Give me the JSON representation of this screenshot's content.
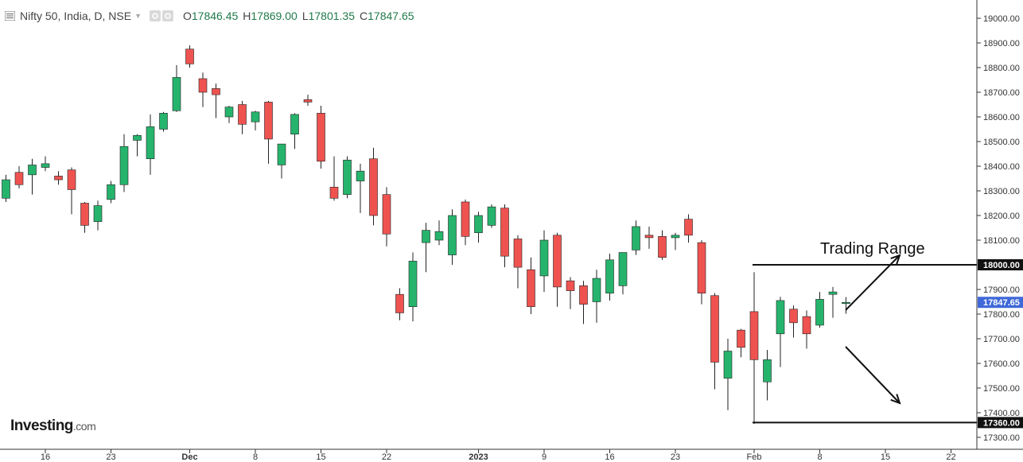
{
  "header": {
    "symbol": "Nifty 50, India, D, NSE",
    "open_label": "O",
    "open": "17846.45",
    "high_label": "H",
    "high": "17869.00",
    "low_label": "L",
    "low": "17801.35",
    "close_label": "C",
    "close": "17847.65"
  },
  "logo": {
    "brand": "Investing",
    "suffix": ".com"
  },
  "colors": {
    "up": "#26b46d",
    "down": "#ef5350",
    "current": "#3f68d8",
    "axis": "#333333",
    "line": "#111111"
  },
  "chart_data": {
    "type": "candlestick",
    "title": "",
    "ylim": [
      17300,
      19050
    ],
    "y_ticks": [
      "17300.00",
      "17400.00",
      "17500.00",
      "17600.00",
      "17700.00",
      "17800.00",
      "17900.00",
      "18100.00",
      "18200.00",
      "18300.00",
      "18400.00",
      "18500.00",
      "18600.00",
      "18700.00",
      "18800.00",
      "18900.00",
      "19000.00"
    ],
    "x_ticks": [
      {
        "label": "16",
        "index": 3
      },
      {
        "label": "23",
        "index": 8
      },
      {
        "label": "Dec",
        "index": 14
      },
      {
        "label": "8",
        "index": 19
      },
      {
        "label": "15",
        "index": 24
      },
      {
        "label": "22",
        "index": 29
      },
      {
        "label": "2023",
        "index": 36
      },
      {
        "label": "9",
        "index": 41
      },
      {
        "label": "16",
        "index": 46
      },
      {
        "label": "23",
        "index": 51
      },
      {
        "label": "Feb",
        "index": 57
      },
      {
        "label": "8",
        "index": 62
      },
      {
        "label": "15",
        "index": 67
      },
      {
        "label": "22",
        "index": 72
      }
    ],
    "candles": [
      {
        "o": 18270,
        "h": 18365,
        "l": 18255,
        "c": 18345
      },
      {
        "o": 18375,
        "h": 18400,
        "l": 18310,
        "c": 18325
      },
      {
        "o": 18365,
        "h": 18430,
        "l": 18285,
        "c": 18405
      },
      {
        "o": 18395,
        "h": 18440,
        "l": 18380,
        "c": 18410
      },
      {
        "o": 18360,
        "h": 18380,
        "l": 18325,
        "c": 18345
      },
      {
        "o": 18385,
        "h": 18395,
        "l": 18205,
        "c": 18305
      },
      {
        "o": 18250,
        "h": 18255,
        "l": 18130,
        "c": 18160
      },
      {
        "o": 18175,
        "h": 18260,
        "l": 18140,
        "c": 18240
      },
      {
        "o": 18265,
        "h": 18340,
        "l": 18250,
        "c": 18325
      },
      {
        "o": 18325,
        "h": 18530,
        "l": 18295,
        "c": 18480
      },
      {
        "o": 18505,
        "h": 18530,
        "l": 18440,
        "c": 18525
      },
      {
        "o": 18430,
        "h": 18610,
        "l": 18365,
        "c": 18560
      },
      {
        "o": 18550,
        "h": 18620,
        "l": 18540,
        "c": 18615
      },
      {
        "o": 18625,
        "h": 18810,
        "l": 18620,
        "c": 18760
      },
      {
        "o": 18875,
        "h": 18890,
        "l": 18800,
        "c": 18815
      },
      {
        "o": 18755,
        "h": 18780,
        "l": 18640,
        "c": 18700
      },
      {
        "o": 18715,
        "h": 18735,
        "l": 18595,
        "c": 18690
      },
      {
        "o": 18600,
        "h": 18645,
        "l": 18575,
        "c": 18640
      },
      {
        "o": 18650,
        "h": 18665,
        "l": 18530,
        "c": 18570
      },
      {
        "o": 18580,
        "h": 18625,
        "l": 18545,
        "c": 18620
      },
      {
        "o": 18660,
        "h": 18665,
        "l": 18410,
        "c": 18510
      },
      {
        "o": 18405,
        "h": 18490,
        "l": 18350,
        "c": 18490
      },
      {
        "o": 18530,
        "h": 18615,
        "l": 18470,
        "c": 18610
      },
      {
        "o": 18670,
        "h": 18690,
        "l": 18645,
        "c": 18660
      },
      {
        "o": 18615,
        "h": 18645,
        "l": 18390,
        "c": 18420
      },
      {
        "o": 18315,
        "h": 18440,
        "l": 18260,
        "c": 18270
      },
      {
        "o": 18285,
        "h": 18440,
        "l": 18270,
        "c": 18425
      },
      {
        "o": 18340,
        "h": 18410,
        "l": 18210,
        "c": 18380
      },
      {
        "o": 18430,
        "h": 18475,
        "l": 18160,
        "c": 18200
      },
      {
        "o": 18285,
        "h": 18315,
        "l": 18075,
        "c": 18125
      },
      {
        "o": 17880,
        "h": 17905,
        "l": 17775,
        "c": 17805
      },
      {
        "o": 17830,
        "h": 18050,
        "l": 17770,
        "c": 18015
      },
      {
        "o": 18090,
        "h": 18170,
        "l": 17970,
        "c": 18140
      },
      {
        "o": 18100,
        "h": 18180,
        "l": 18080,
        "c": 18135
      },
      {
        "o": 18040,
        "h": 18225,
        "l": 18000,
        "c": 18200
      },
      {
        "o": 18255,
        "h": 18265,
        "l": 18080,
        "c": 18115
      },
      {
        "o": 18130,
        "h": 18215,
        "l": 18090,
        "c": 18200
      },
      {
        "o": 18160,
        "h": 18245,
        "l": 18150,
        "c": 18235
      },
      {
        "o": 18230,
        "h": 18245,
        "l": 17990,
        "c": 18035
      },
      {
        "o": 18105,
        "h": 18120,
        "l": 17905,
        "c": 17990
      },
      {
        "o": 17980,
        "h": 18030,
        "l": 17800,
        "c": 17830
      },
      {
        "o": 17955,
        "h": 18140,
        "l": 17890,
        "c": 18100
      },
      {
        "o": 18120,
        "h": 18130,
        "l": 17830,
        "c": 17910
      },
      {
        "o": 17935,
        "h": 17950,
        "l": 17820,
        "c": 17895
      },
      {
        "o": 17915,
        "h": 17935,
        "l": 17760,
        "c": 17840
      },
      {
        "o": 17850,
        "h": 17980,
        "l": 17765,
        "c": 17945
      },
      {
        "o": 17885,
        "h": 18045,
        "l": 17855,
        "c": 18020
      },
      {
        "o": 17915,
        "h": 18040,
        "l": 17880,
        "c": 18050
      },
      {
        "o": 18060,
        "h": 18180,
        "l": 18040,
        "c": 18155
      },
      {
        "o": 18120,
        "h": 18155,
        "l": 18065,
        "c": 18110
      },
      {
        "o": 18115,
        "h": 18140,
        "l": 18020,
        "c": 18030
      },
      {
        "o": 18110,
        "h": 18130,
        "l": 18060,
        "c": 18120
      },
      {
        "o": 18185,
        "h": 18205,
        "l": 18090,
        "c": 18120
      },
      {
        "o": 18090,
        "h": 18100,
        "l": 17840,
        "c": 17885
      },
      {
        "o": 17875,
        "h": 17885,
        "l": 17495,
        "c": 17605
      },
      {
        "o": 17540,
        "h": 17700,
        "l": 17410,
        "c": 17650
      },
      {
        "o": 17735,
        "h": 17740,
        "l": 17625,
        "c": 17665
      },
      {
        "o": 17810,
        "h": 17970,
        "l": 17355,
        "c": 17615
      },
      {
        "o": 17525,
        "h": 17655,
        "l": 17450,
        "c": 17615
      },
      {
        "o": 17720,
        "h": 17870,
        "l": 17585,
        "c": 17855
      },
      {
        "o": 17820,
        "h": 17835,
        "l": 17705,
        "c": 17765
      },
      {
        "o": 17790,
        "h": 17815,
        "l": 17660,
        "c": 17720
      },
      {
        "o": 17755,
        "h": 17890,
        "l": 17745,
        "c": 17860
      },
      {
        "o": 17880,
        "h": 17910,
        "l": 17785,
        "c": 17890
      },
      {
        "o": 17846.45,
        "h": 17869.0,
        "l": 17801.35,
        "c": 17847.65
      }
    ],
    "current_price_label": "17847.65",
    "annotations": {
      "range_text": "Trading Range",
      "range_high": 18000,
      "range_low": 17360,
      "range_high_label": "18000.00",
      "range_low_label": "17360.00"
    }
  }
}
